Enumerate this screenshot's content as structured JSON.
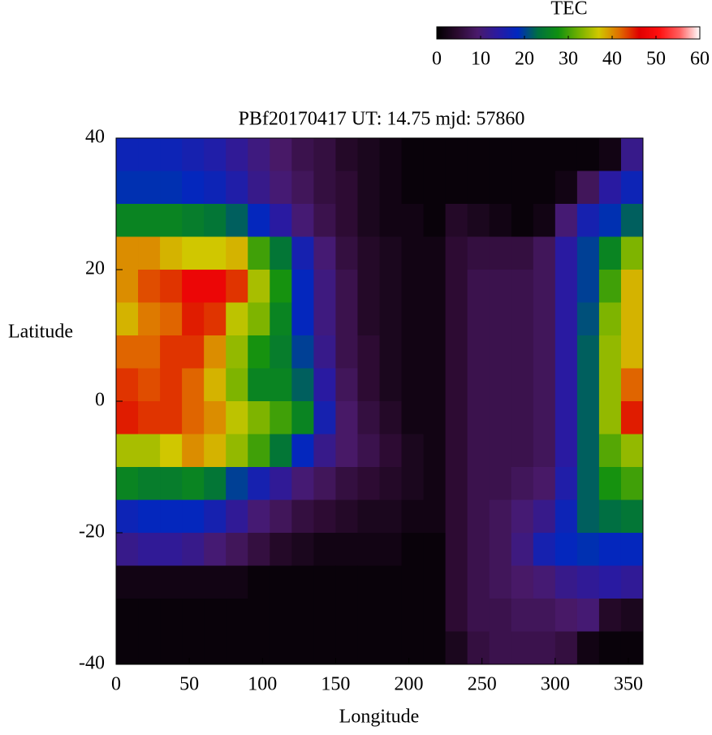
{
  "chart_data": {
    "type": "heatmap",
    "title": "PBf20170417  UT: 14.75  mjd: 57860",
    "x_label": "Longitude",
    "y_label": "Latitude",
    "colorbar_label": "TEC",
    "x": [
      7.5,
      22.5,
      37.5,
      52.5,
      67.5,
      82.5,
      97.5,
      112.5,
      127.5,
      142.5,
      157.5,
      172.5,
      187.5,
      202.5,
      217.5,
      232.5,
      247.5,
      262.5,
      277.5,
      292.5,
      307.5,
      322.5,
      337.5,
      352.5
    ],
    "y": [
      37.5,
      32.5,
      27.5,
      22.5,
      17.5,
      12.5,
      7.5,
      2.5,
      -2.5,
      -7.5,
      -12.5,
      -17.5,
      -22.5,
      -27.5,
      -32.5,
      -37.5
    ],
    "values": [
      [
        17,
        17,
        17,
        16,
        15,
        13,
        11,
        9,
        7,
        6,
        4,
        3,
        2,
        1,
        1,
        1,
        1,
        1,
        1,
        1,
        1,
        1,
        2,
        12
      ],
      [
        19,
        19,
        19,
        18,
        17,
        15,
        12,
        10,
        8,
        6,
        5,
        3,
        2,
        1,
        1,
        1,
        1,
        1,
        1,
        1,
        2,
        8,
        14,
        17
      ],
      [
        26,
        26,
        26,
        25,
        24,
        22,
        18,
        14,
        10,
        7,
        5,
        3,
        2,
        2,
        1,
        4,
        3,
        2,
        1,
        2,
        10,
        16,
        19,
        22
      ],
      [
        40,
        40,
        38,
        37,
        37,
        38,
        30,
        24,
        16,
        10,
        6,
        4,
        3,
        2,
        2,
        5,
        6,
        6,
        6,
        8,
        14,
        20,
        26,
        33
      ],
      [
        40,
        43,
        44,
        48,
        48,
        44,
        35,
        28,
        18,
        11,
        7,
        4,
        3,
        2,
        2,
        5,
        7,
        7,
        7,
        8,
        14,
        20,
        30,
        38
      ],
      [
        38,
        41,
        42,
        45,
        44,
        36,
        33,
        26,
        18,
        11,
        7,
        4,
        3,
        2,
        2,
        5,
        7,
        7,
        7,
        8,
        14,
        21,
        33,
        38
      ],
      [
        42,
        42,
        44,
        44,
        40,
        34,
        28,
        25,
        20,
        12,
        7,
        5,
        3,
        2,
        2,
        5,
        7,
        7,
        7,
        8,
        14,
        22,
        34,
        38
      ],
      [
        44,
        43,
        44,
        42,
        38,
        33,
        26,
        26,
        22,
        14,
        8,
        5,
        3,
        2,
        2,
        5,
        7,
        7,
        7,
        8,
        14,
        22,
        34,
        42
      ],
      [
        45,
        44,
        44,
        42,
        40,
        36,
        33,
        30,
        26,
        16,
        9,
        6,
        4,
        2,
        2,
        5,
        7,
        7,
        7,
        8,
        14,
        22,
        34,
        45
      ],
      [
        35,
        35,
        37,
        40,
        38,
        34,
        30,
        24,
        18,
        12,
        9,
        7,
        5,
        3,
        2,
        5,
        7,
        7,
        7,
        8,
        14,
        22,
        31,
        34
      ],
      [
        26,
        25,
        25,
        26,
        24,
        20,
        16,
        13,
        10,
        8,
        6,
        5,
        4,
        3,
        2,
        5,
        7,
        7,
        8,
        9,
        15,
        22,
        28,
        30
      ],
      [
        17,
        18,
        18,
        18,
        16,
        13,
        10,
        8,
        6,
        5,
        4,
        3,
        3,
        2,
        2,
        5,
        7,
        8,
        10,
        12,
        17,
        22,
        23,
        24
      ],
      [
        12,
        13,
        13,
        12,
        10,
        8,
        6,
        4,
        3,
        2,
        2,
        2,
        2,
        1,
        1,
        5,
        7,
        8,
        11,
        16,
        18,
        19,
        18,
        18
      ],
      [
        2,
        2,
        2,
        2,
        2,
        2,
        1,
        1,
        1,
        1,
        1,
        1,
        1,
        1,
        1,
        5,
        7,
        8,
        9,
        10,
        12,
        13,
        14,
        13
      ],
      [
        1,
        1,
        1,
        1,
        1,
        1,
        1,
        1,
        1,
        1,
        1,
        1,
        1,
        1,
        1,
        5,
        7,
        7,
        8,
        8,
        9,
        10,
        4,
        3
      ],
      [
        1,
        1,
        1,
        1,
        1,
        1,
        1,
        1,
        1,
        1,
        1,
        1,
        1,
        1,
        1,
        3,
        6,
        7,
        7,
        7,
        6,
        2,
        1,
        1
      ]
    ],
    "xlim": [
      0,
      360
    ],
    "xticks": [
      0,
      50,
      100,
      150,
      200,
      250,
      300,
      350
    ],
    "ylim": [
      -40,
      40
    ],
    "yticks": [
      -40,
      -20,
      0,
      20,
      40
    ],
    "clim": [
      0,
      60
    ],
    "cticks": [
      0,
      10,
      20,
      30,
      40,
      50,
      60
    ],
    "colormap": [
      "#000000",
      "#2a0a2e",
      "#4a1a6a",
      "#2a1aa0",
      "#0028c0",
      "#007040",
      "#109010",
      "#70b000",
      "#d0c800",
      "#e07000",
      "#e00000",
      "#ff1010",
      "#ff6060",
      "#ffffff"
    ]
  }
}
